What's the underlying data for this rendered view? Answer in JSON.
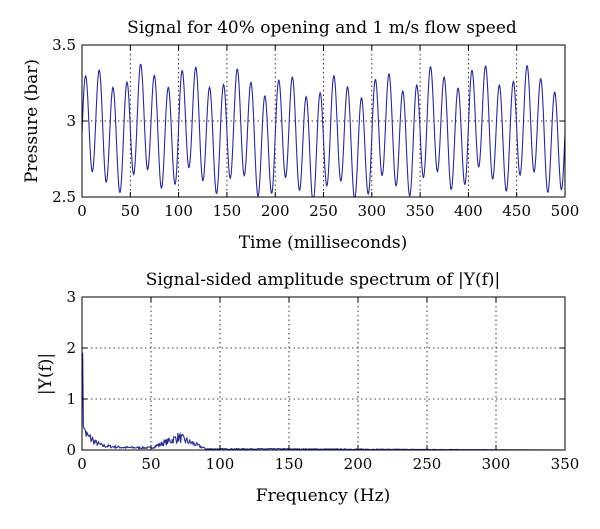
{
  "chart_data": [
    {
      "type": "line",
      "title": "Signal for 40% opening and 1 m/s flow speed",
      "xlabel": "Time (milliseconds)",
      "ylabel": "Pressure (bar)",
      "xlim": [
        0,
        500
      ],
      "ylim": [
        2.5,
        3.5
      ],
      "x_ticks": [
        0,
        50,
        100,
        150,
        200,
        250,
        300,
        350,
        400,
        450,
        500
      ],
      "y_ticks": [
        2.5,
        3,
        3.5
      ],
      "y_tick_labels": [
        "2.5",
        "3",
        "3.5"
      ],
      "grid": true,
      "series": [
        {
          "color": "#2b2b8f",
          "signal": {
            "mean": 2.92,
            "components": [
              {
                "amplitude": 0.34,
                "frequency_hz": 70
              },
              {
                "amplitude": 0.08,
                "frequency_hz": 20
              },
              {
                "amplitude": 0.04,
                "frequency_hz": 3
              }
            ],
            "sample_interval_ms": 0.5,
            "clip_min": 2.5
          }
        }
      ]
    },
    {
      "type": "line",
      "title": "Signal-sided amplitude spectrum of |Y(f)|",
      "xlabel": "Frequency (Hz)",
      "ylabel": "|Y(f)|",
      "xlim": [
        0,
        350
      ],
      "ylim": [
        0,
        3
      ],
      "x_ticks": [
        0,
        50,
        100,
        150,
        200,
        250,
        300,
        350
      ],
      "y_ticks": [
        0,
        1,
        2,
        3
      ],
      "grid": true,
      "series": [
        {
          "color": "#2b2b8f",
          "peaks": [
            {
              "x": 0,
              "y": 2.0
            },
            {
              "x": 1,
              "y": 0.8
            },
            {
              "x": 2,
              "y": 0.5
            },
            {
              "x": 4,
              "y": 0.38
            },
            {
              "x": 7,
              "y": 0.3
            },
            {
              "x": 10,
              "y": 0.2
            },
            {
              "x": 15,
              "y": 0.12
            },
            {
              "x": 20,
              "y": 0.1
            },
            {
              "x": 30,
              "y": 0.07
            },
            {
              "x": 50,
              "y": 0.06
            },
            {
              "x": 70,
              "y": 0.35
            },
            {
              "x": 90,
              "y": 0.03
            },
            {
              "x": 140,
              "y": 0.03
            },
            {
              "x": 350,
              "y": 0.0
            }
          ]
        }
      ]
    }
  ]
}
